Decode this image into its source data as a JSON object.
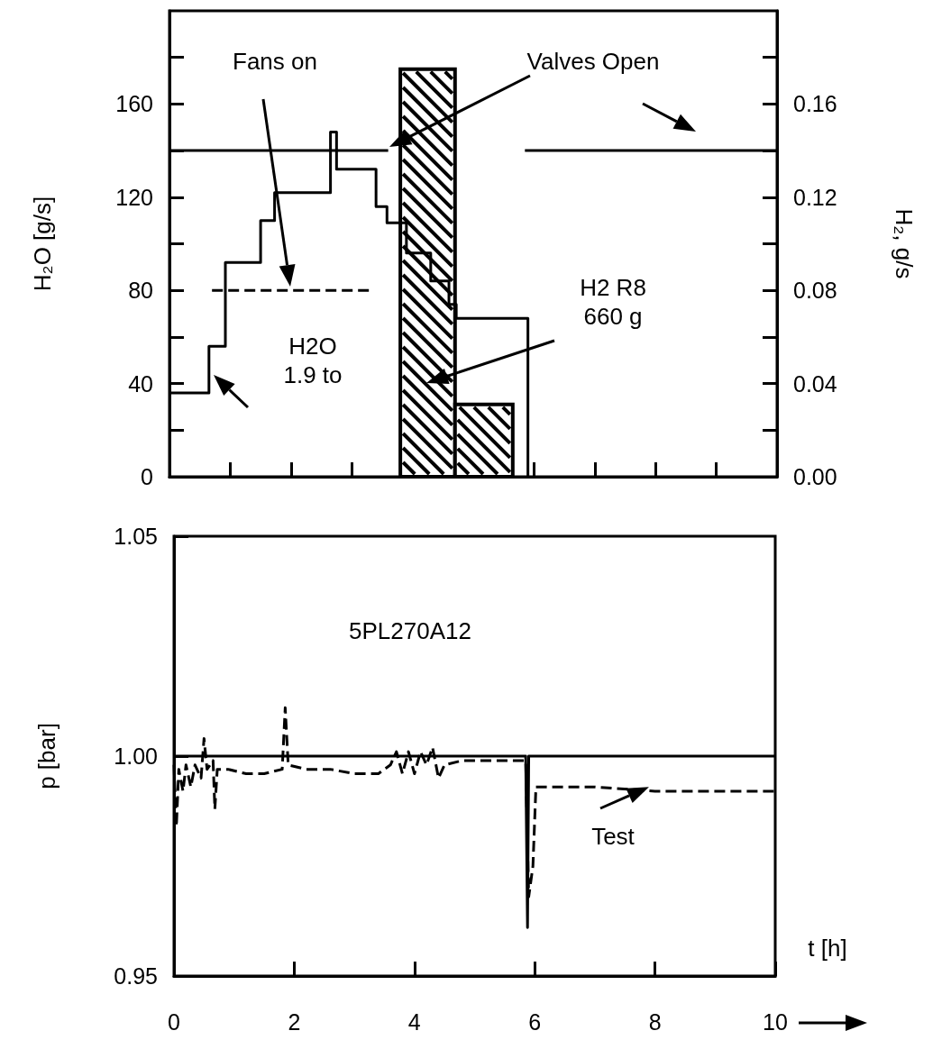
{
  "chart_data": [
    {
      "type": "step",
      "ylabel": "H₂O [g/s]",
      "y2label": "H₂, g/s",
      "xlim": [
        0,
        10
      ],
      "xticks": [
        0,
        1,
        2,
        3,
        4,
        5,
        6,
        7,
        8,
        9,
        10
      ],
      "ylim": [
        0,
        200
      ],
      "yticks": [
        0,
        {
          "value": 20,
          "label": null
        },
        40,
        {
          "value": 60,
          "label": null
        },
        80,
        {
          "value": 100,
          "label": null
        },
        120,
        {
          "value": 140,
          "label": null
        },
        160,
        {
          "value": 180,
          "label": null
        }
      ],
      "y2lim": [
        0,
        0.2
      ],
      "y2ticks": [
        {
          "value": 0,
          "label": "0.00"
        },
        {
          "value": 0.02,
          "label": null
        },
        {
          "value": 0.04,
          "label": "0.04"
        },
        {
          "value": 0.06,
          "label": null
        },
        {
          "value": 0.08,
          "label": "0.08"
        },
        {
          "value": 0.1,
          "label": null
        },
        {
          "value": 0.12,
          "label": "0.12"
        },
        {
          "value": 0.14,
          "label": null
        },
        {
          "value": 0.16,
          "label": "0.16"
        },
        {
          "value": 0.18,
          "label": null
        }
      ],
      "tick_labels": "y",
      "marker": "none",
      "annotations": [
        "Fans on",
        "Valves Open",
        "H2O\n1.9 to",
        "H2 R8\n660 g"
      ],
      "series": [
        {
          "type": "histogram",
          "axis": "y2",
          "color": "#000000",
          "bins": [
            3.8,
            4.7,
            5.65
          ],
          "values": [
            0.175,
            0.031
          ]
        },
        {
          "color": "#000000",
          "x": [
            0,
            0.65,
            0.92,
            1.5,
            1.73,
            2.65,
            2.75,
            3.4,
            3.58,
            3.9,
            4.3,
            4.6,
            4.72,
            5.9
          ],
          "values": [
            36,
            56,
            92,
            110,
            122,
            148,
            132,
            116,
            109,
            96,
            84,
            74,
            68,
            0
          ]
        },
        {
          "type": "line",
          "color": "#000000",
          "line_style": "dashed",
          "x": [
            0.7,
            3.3
          ],
          "values": [
            80,
            80
          ]
        },
        {
          "type": "line",
          "color": "#000000",
          "x": [
            0,
            3.6,
            4.7,
            5.85,
            10
          ],
          "values": [
            140,
            140,
            null,
            140,
            140
          ]
        }
      ]
    },
    {
      "type": "line",
      "ylabel": "p [bar]",
      "xlabel": "t [h]",
      "xlim": [
        0,
        10
      ],
      "xticks": [
        0,
        2,
        4,
        6,
        8,
        10
      ],
      "ylim": [
        0.95,
        1.05
      ],
      "yticks": [
        0.95,
        {
          "value": 1,
          "label": "1.00"
        },
        1.05
      ],
      "marker": "none",
      "annotations": [
        "5PL270A12",
        {
          "text": "Test",
          "x": 7.9,
          "y": 0.993
        }
      ],
      "series": [
        {
          "color": "#000000",
          "x": [
            0,
            5.85,
            5.88,
            5.9,
            10
          ],
          "values": [
            1,
            1,
            0.961,
            1,
            1
          ]
        },
        {
          "color": "#000000",
          "line_style": "dashed",
          "x": [
            0,
            0.04,
            0.08,
            0.15,
            0.2,
            0.28,
            0.35,
            0.45,
            0.5,
            0.55,
            0.65,
            0.68,
            0.72,
            0.9,
            1.2,
            1.5,
            1.8,
            1.85,
            1.9,
            2.2,
            2.6,
            3.0,
            3.4,
            3.6,
            3.7,
            3.8,
            3.9,
            4.0,
            4.1,
            4.2,
            4.3,
            4.4,
            4.5,
            4.8,
            5.2,
            5.7,
            5.85,
            5.9,
            5.97,
            6.02,
            7.0,
            8.0,
            10
          ],
          "values": [
            0.998,
            0.984,
            0.997,
            0.992,
            0.998,
            0.993,
            0.998,
            0.995,
            1.004,
            0.997,
            0.999,
            0.988,
            0.997,
            0.997,
            0.996,
            0.996,
            0.997,
            1.011,
            0.998,
            0.997,
            0.997,
            0.996,
            0.996,
            0.998,
            1.001,
            0.996,
            1.001,
            0.996,
            1.001,
            0.998,
            1.002,
            0.995,
            0.998,
            0.999,
            0.999,
            0.999,
            0.999,
            0.968,
            0.975,
            0.993,
            0.993,
            0.992,
            0.992
          ]
        }
      ]
    }
  ]
}
